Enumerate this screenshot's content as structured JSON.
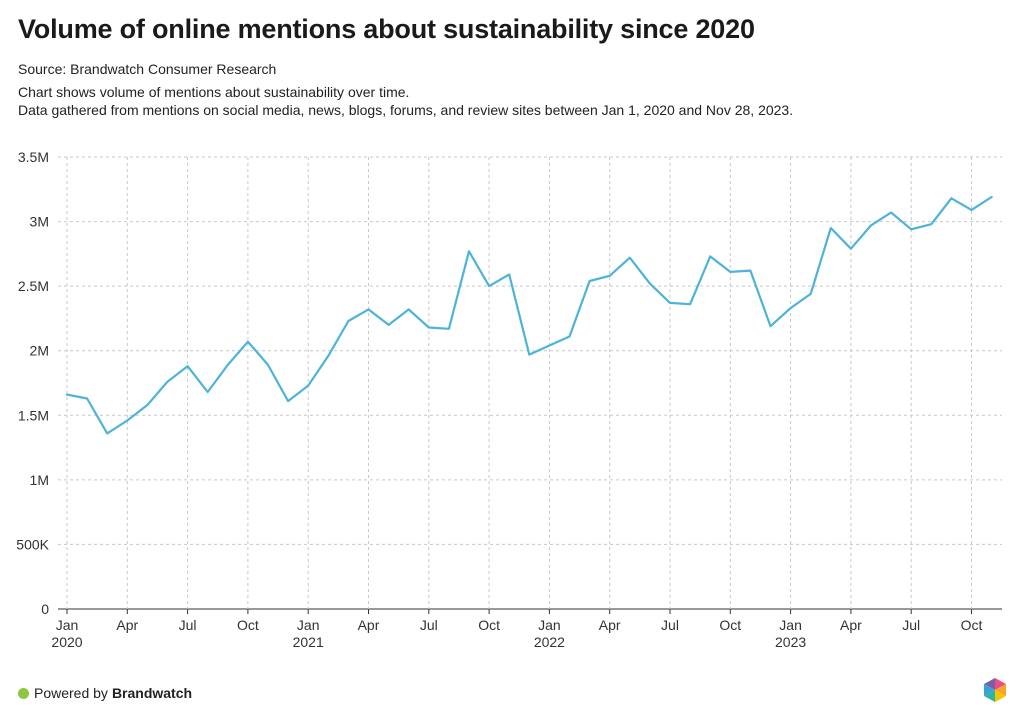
{
  "header": {
    "title": "Volume of online mentions about sustainability since 2020",
    "source": "Source: Brandwatch Consumer Research",
    "description_line1": "Chart shows volume of mentions about sustainability over time.",
    "description_line2": "Data gathered from mentions on social media, news, blogs, forums, and review sites between Jan 1, 2020 and Nov 28, 2023."
  },
  "footer": {
    "powered_by": "Powered by",
    "brand": "Brandwatch",
    "dot_color": "#8dc63f",
    "logo_icon": "brandwatch-hexagon-logo"
  },
  "chart_data": {
    "type": "line",
    "title": "Volume of online mentions about sustainability since 2020",
    "xlabel": "",
    "ylabel": "",
    "ylim": [
      0,
      3500000
    ],
    "yticks": [
      {
        "value": 0,
        "label": "0"
      },
      {
        "value": 500000,
        "label": "500K"
      },
      {
        "value": 1000000,
        "label": "1M"
      },
      {
        "value": 1500000,
        "label": "1.5M"
      },
      {
        "value": 2000000,
        "label": "2M"
      },
      {
        "value": 2500000,
        "label": "2.5M"
      },
      {
        "value": 3000000,
        "label": "3M"
      },
      {
        "value": 3500000,
        "label": "3.5M"
      }
    ],
    "xticks": [
      {
        "date": "2020-01",
        "label": "Jan",
        "year": "2020"
      },
      {
        "date": "2020-04",
        "label": "Apr",
        "year": ""
      },
      {
        "date": "2020-07",
        "label": "Jul",
        "year": ""
      },
      {
        "date": "2020-10",
        "label": "Oct",
        "year": ""
      },
      {
        "date": "2021-01",
        "label": "Jan",
        "year": "2021"
      },
      {
        "date": "2021-04",
        "label": "Apr",
        "year": ""
      },
      {
        "date": "2021-07",
        "label": "Jul",
        "year": ""
      },
      {
        "date": "2021-10",
        "label": "Oct",
        "year": ""
      },
      {
        "date": "2022-01",
        "label": "Jan",
        "year": "2022"
      },
      {
        "date": "2022-04",
        "label": "Apr",
        "year": ""
      },
      {
        "date": "2022-07",
        "label": "Jul",
        "year": ""
      },
      {
        "date": "2022-10",
        "label": "Oct",
        "year": ""
      },
      {
        "date": "2023-01",
        "label": "Jan",
        "year": "2023"
      },
      {
        "date": "2023-04",
        "label": "Apr",
        "year": ""
      },
      {
        "date": "2023-07",
        "label": "Jul",
        "year": ""
      },
      {
        "date": "2023-10",
        "label": "Oct",
        "year": ""
      }
    ],
    "grid": true,
    "legend": "none",
    "line_color": "#4db3d9",
    "series": [
      {
        "x": [
          "2020-01",
          "2020-02",
          "2020-03",
          "2020-04",
          "2020-05",
          "2020-06",
          "2020-07",
          "2020-08",
          "2020-09",
          "2020-10",
          "2020-11",
          "2020-12",
          "2021-01",
          "2021-02",
          "2021-03",
          "2021-04",
          "2021-05",
          "2021-06",
          "2021-07",
          "2021-08",
          "2021-09",
          "2021-10",
          "2021-11",
          "2021-12",
          "2022-01",
          "2022-02",
          "2022-03",
          "2022-04",
          "2022-05",
          "2022-06",
          "2022-07",
          "2022-08",
          "2022-09",
          "2022-10",
          "2022-11",
          "2022-12",
          "2023-01",
          "2023-02",
          "2023-03",
          "2023-04",
          "2023-05",
          "2023-06",
          "2023-07",
          "2023-08",
          "2023-09",
          "2023-10",
          "2023-11"
        ],
        "values": [
          1660000,
          1630000,
          1360000,
          1460000,
          1580000,
          1760000,
          1880000,
          1680000,
          1890000,
          2070000,
          1890000,
          1610000,
          1730000,
          1960000,
          2230000,
          2320000,
          2200000,
          2320000,
          2180000,
          2170000,
          2770000,
          2500000,
          2590000,
          1970000,
          2040000,
          2110000,
          2540000,
          2580000,
          2720000,
          2520000,
          2370000,
          2360000,
          2730000,
          2610000,
          2620000,
          2190000,
          2330000,
          2440000,
          2950000,
          2790000,
          2970000,
          3070000,
          2940000,
          2980000,
          3180000,
          3090000,
          3190000
        ]
      }
    ]
  }
}
